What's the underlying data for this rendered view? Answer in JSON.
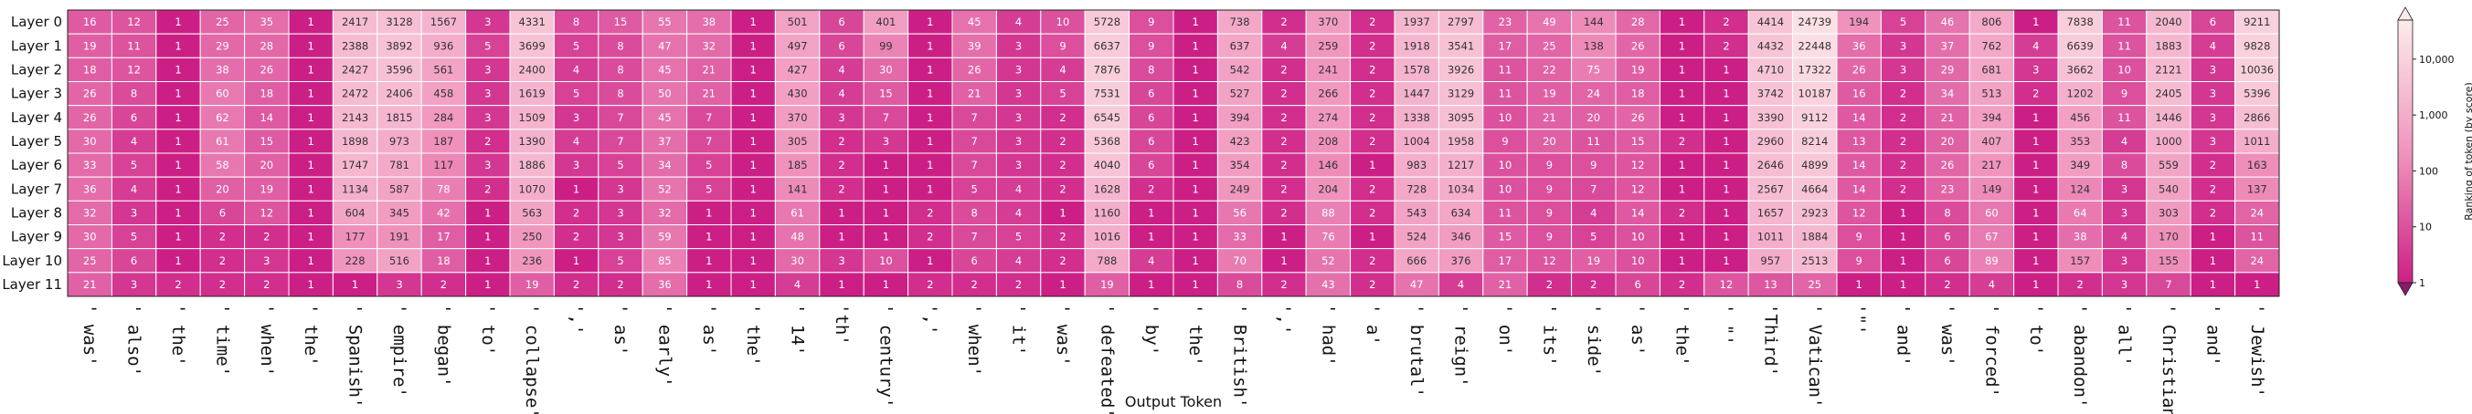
{
  "chart_data": {
    "type": "heatmap",
    "xlabel": "Output Token",
    "colorbar_label": "Ranking of token (by score)",
    "colorbar_ticks": [
      "1",
      "10",
      "100",
      "1,000",
      "10,000"
    ],
    "colorbar_scale": "log",
    "colorbar_range": [
      1,
      50000
    ],
    "colors": {
      "low": "#cc1f86",
      "mid": "#f095bd",
      "high": "#fdebeb"
    },
    "rows": [
      "Layer 0",
      "Layer 1",
      "Layer 2",
      "Layer 3",
      "Layer 4",
      "Layer 5",
      "Layer 6",
      "Layer 7",
      "Layer 8",
      "Layer 9",
      "Layer 10",
      "Layer 11"
    ],
    "columns": [
      "' was'",
      "' also'",
      "' the'",
      "' time'",
      "' when'",
      "' the'",
      "' Spanish'",
      "' empire'",
      "' began'",
      "' to'",
      "' collapse'",
      "','",
      "' as'",
      "' early'",
      "' as'",
      "' the'",
      "' 14'",
      "'th'",
      "' century'",
      "','",
      "' when'",
      "' it'",
      "' was'",
      "' defeated'",
      "' by'",
      "' the'",
      "' British'",
      "','",
      "' had'",
      "' a'",
      "' brutal'",
      "' reign'",
      "' on'",
      "' its'",
      "' side'",
      "' as'",
      "' the'",
      "' \"'",
      "'Third'",
      "' Vatican'",
      "'\"'",
      "' and'",
      "' was'",
      "' forced'",
      "' to'",
      "' abandon'",
      "' all'",
      "' Christian'",
      "' and'",
      "' Jewish'"
    ],
    "values": [
      [
        16,
        12,
        1,
        25,
        35,
        1,
        2417,
        3128,
        1567,
        3,
        4331,
        8,
        15,
        55,
        38,
        1,
        501,
        6,
        401,
        1,
        45,
        4,
        10,
        5728,
        9,
        1,
        738,
        2,
        370,
        2,
        1937,
        2797,
        23,
        49,
        144,
        28,
        1,
        2,
        4414,
        24739,
        194,
        5,
        46,
        806,
        1,
        7838,
        11,
        2040,
        6,
        9211
      ],
      [
        19,
        11,
        1,
        29,
        28,
        1,
        2388,
        3892,
        936,
        5,
        3699,
        5,
        8,
        47,
        32,
        1,
        497,
        6,
        99,
        1,
        39,
        3,
        9,
        6637,
        9,
        1,
        637,
        4,
        259,
        2,
        1918,
        3541,
        17,
        25,
        138,
        26,
        1,
        2,
        4432,
        22448,
        36,
        3,
        37,
        762,
        4,
        6639,
        11,
        1883,
        4,
        9828
      ],
      [
        18,
        12,
        1,
        38,
        26,
        1,
        2427,
        3596,
        561,
        3,
        2400,
        4,
        8,
        45,
        21,
        1,
        427,
        4,
        30,
        1,
        26,
        3,
        4,
        7876,
        8,
        1,
        542,
        2,
        241,
        2,
        1578,
        3926,
        11,
        22,
        75,
        19,
        1,
        1,
        4710,
        17322,
        26,
        3,
        29,
        681,
        3,
        3662,
        10,
        2121,
        3,
        10036
      ],
      [
        26,
        8,
        1,
        60,
        18,
        1,
        2472,
        2406,
        458,
        3,
        1619,
        5,
        8,
        50,
        21,
        1,
        430,
        4,
        15,
        1,
        21,
        3,
        5,
        7531,
        6,
        1,
        527,
        2,
        266,
        2,
        1447,
        3129,
        11,
        19,
        24,
        18,
        1,
        1,
        3742,
        10187,
        16,
        2,
        34,
        513,
        2,
        1202,
        9,
        2405,
        3,
        5396
      ],
      [
        26,
        6,
        1,
        62,
        14,
        1,
        2143,
        1815,
        284,
        3,
        1509,
        3,
        7,
        45,
        7,
        1,
        370,
        3,
        7,
        1,
        7,
        3,
        2,
        6545,
        6,
        1,
        394,
        2,
        274,
        2,
        1338,
        3095,
        10,
        21,
        20,
        26,
        1,
        1,
        3390,
        9112,
        14,
        2,
        21,
        394,
        1,
        456,
        11,
        1446,
        3,
        2866
      ],
      [
        30,
        4,
        1,
        61,
        15,
        1,
        1898,
        973,
        187,
        2,
        1390,
        4,
        7,
        37,
        7,
        1,
        305,
        2,
        3,
        1,
        7,
        3,
        2,
        5368,
        6,
        1,
        423,
        2,
        208,
        2,
        1004,
        1958,
        9,
        20,
        11,
        15,
        2,
        1,
        2960,
        8214,
        13,
        2,
        20,
        407,
        1,
        353,
        4,
        1000,
        3,
        1011
      ],
      [
        33,
        5,
        1,
        58,
        20,
        1,
        1747,
        781,
        117,
        3,
        1886,
        3,
        5,
        34,
        5,
        1,
        185,
        2,
        1,
        1,
        7,
        3,
        2,
        4040,
        6,
        1,
        354,
        2,
        146,
        1,
        983,
        1217,
        10,
        9,
        9,
        12,
        1,
        1,
        2646,
        4899,
        14,
        2,
        26,
        217,
        1,
        349,
        8,
        559,
        2,
        163
      ],
      [
        36,
        4,
        1,
        20,
        19,
        1,
        1134,
        587,
        78,
        2,
        1070,
        1,
        3,
        52,
        5,
        1,
        141,
        2,
        1,
        1,
        5,
        4,
        2,
        1628,
        2,
        1,
        249,
        2,
        204,
        2,
        728,
        1034,
        10,
        9,
        7,
        12,
        1,
        1,
        2567,
        4664,
        14,
        2,
        23,
        149,
        1,
        124,
        3,
        540,
        2,
        137
      ],
      [
        32,
        3,
        1,
        6,
        12,
        1,
        604,
        345,
        42,
        1,
        563,
        2,
        3,
        32,
        1,
        1,
        61,
        1,
        1,
        2,
        8,
        4,
        1,
        1160,
        1,
        1,
        56,
        2,
        88,
        2,
        543,
        634,
        11,
        9,
        4,
        14,
        2,
        1,
        1657,
        2923,
        12,
        1,
        8,
        60,
        1,
        64,
        3,
        303,
        2,
        24
      ],
      [
        30,
        5,
        1,
        2,
        2,
        1,
        177,
        191,
        17,
        1,
        250,
        2,
        3,
        59,
        1,
        1,
        48,
        1,
        1,
        2,
        7,
        5,
        2,
        1016,
        1,
        1,
        33,
        1,
        76,
        1,
        524,
        346,
        15,
        9,
        5,
        10,
        1,
        1,
        1011,
        1884,
        9,
        1,
        6,
        67,
        1,
        38,
        4,
        170,
        1,
        11
      ],
      [
        25,
        6,
        1,
        2,
        3,
        1,
        228,
        516,
        18,
        1,
        236,
        1,
        5,
        85,
        1,
        1,
        30,
        3,
        10,
        1,
        6,
        4,
        2,
        788,
        4,
        1,
        70,
        1,
        52,
        2,
        666,
        376,
        17,
        12,
        19,
        10,
        1,
        1,
        957,
        2513,
        9,
        1,
        6,
        89,
        1,
        157,
        3,
        155,
        1,
        24
      ],
      [
        21,
        3,
        2,
        2,
        2,
        1,
        1,
        3,
        2,
        1,
        19,
        2,
        2,
        36,
        1,
        1,
        4,
        1,
        1,
        2,
        2,
        2,
        1,
        19,
        1,
        1,
        8,
        2,
        43,
        2,
        47,
        4,
        21,
        2,
        2,
        6,
        2,
        12,
        13,
        25,
        1,
        1,
        2,
        4,
        1,
        2,
        3,
        7,
        1,
        1
      ]
    ]
  }
}
